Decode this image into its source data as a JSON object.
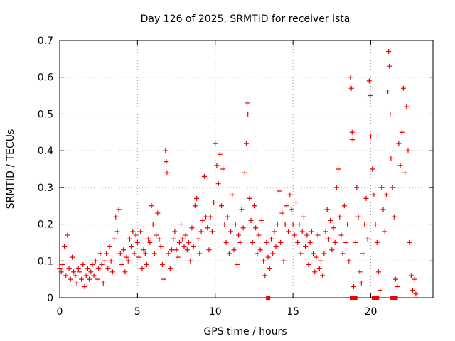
{
  "chart_data": {
    "type": "scatter",
    "title": "Day 126 of 2025, SRMTID for receiver ista",
    "xlabel": "GPS time / hours",
    "ylabel": "SRMTID / TECUs",
    "xlim": [
      0,
      24
    ],
    "ylim": [
      0,
      0.7
    ],
    "x_ticks": [
      {
        "value": 0,
        "label": "0"
      },
      {
        "value": 5,
        "label": "5"
      },
      {
        "value": 10,
        "label": "10"
      },
      {
        "value": 15,
        "label": "15"
      },
      {
        "value": 20,
        "label": "20"
      }
    ],
    "y_ticks": [
      {
        "value": 0,
        "label": "0"
      },
      {
        "value": 0.1,
        "label": "0.1"
      },
      {
        "value": 0.2,
        "label": "0.2"
      },
      {
        "value": 0.3,
        "label": "0.3"
      },
      {
        "value": 0.4,
        "label": "0.4"
      },
      {
        "value": 0.5,
        "label": "0.5"
      },
      {
        "value": 0.6,
        "label": "0.6"
      },
      {
        "value": 0.7,
        "label": "0.7"
      }
    ],
    "grid": true,
    "marker": "+",
    "series": [
      {
        "name": "SRMTID",
        "color": "#ee0000",
        "points": [
          [
            0.0,
            0.08
          ],
          [
            0.1,
            0.07
          ],
          [
            0.2,
            0.09
          ],
          [
            0.3,
            0.14
          ],
          [
            0.4,
            0.06
          ],
          [
            0.5,
            0.17
          ],
          [
            0.6,
            0.08
          ],
          [
            0.7,
            0.05
          ],
          [
            0.8,
            0.11
          ],
          [
            0.9,
            0.07
          ],
          [
            1.0,
            0.06
          ],
          [
            1.1,
            0.04
          ],
          [
            1.2,
            0.08
          ],
          [
            1.3,
            0.07
          ],
          [
            1.4,
            0.05
          ],
          [
            1.5,
            0.09
          ],
          [
            1.6,
            0.03
          ],
          [
            1.7,
            0.06
          ],
          [
            1.8,
            0.08
          ],
          [
            1.9,
            0.05
          ],
          [
            2.0,
            0.07
          ],
          [
            2.1,
            0.09
          ],
          [
            2.2,
            0.06
          ],
          [
            2.3,
            0.1
          ],
          [
            2.4,
            0.05
          ],
          [
            2.5,
            0.08
          ],
          [
            2.6,
            0.12
          ],
          [
            2.7,
            0.09
          ],
          [
            2.8,
            0.04
          ],
          [
            2.9,
            0.1
          ],
          [
            3.0,
            0.12
          ],
          [
            3.1,
            0.08
          ],
          [
            3.2,
            0.14
          ],
          [
            3.3,
            0.1
          ],
          [
            3.4,
            0.07
          ],
          [
            3.5,
            0.16
          ],
          [
            3.6,
            0.22
          ],
          [
            3.7,
            0.18
          ],
          [
            3.8,
            0.24
          ],
          [
            3.9,
            0.12
          ],
          [
            4.0,
            0.09
          ],
          [
            4.1,
            0.13
          ],
          [
            4.2,
            0.07
          ],
          [
            4.3,
            0.11
          ],
          [
            4.4,
            0.1
          ],
          [
            4.5,
            0.16
          ],
          [
            4.6,
            0.14
          ],
          [
            4.7,
            0.18
          ],
          [
            4.8,
            0.12
          ],
          [
            4.9,
            0.17
          ],
          [
            5.0,
            0.15
          ],
          [
            5.1,
            0.11
          ],
          [
            5.2,
            0.18
          ],
          [
            5.3,
            0.08
          ],
          [
            5.4,
            0.13
          ],
          [
            5.5,
            0.12
          ],
          [
            5.6,
            0.09
          ],
          [
            5.7,
            0.16
          ],
          [
            5.8,
            0.15
          ],
          [
            5.9,
            0.25
          ],
          [
            6.0,
            0.2
          ],
          [
            6.1,
            0.12
          ],
          [
            6.2,
            0.17
          ],
          [
            6.3,
            0.23
          ],
          [
            6.4,
            0.16
          ],
          [
            6.5,
            0.14
          ],
          [
            6.6,
            0.09
          ],
          [
            6.7,
            0.05
          ],
          [
            6.8,
            0.4
          ],
          [
            6.85,
            0.37
          ],
          [
            6.9,
            0.34
          ],
          [
            7.0,
            0.12
          ],
          [
            7.1,
            0.08
          ],
          [
            7.2,
            0.13
          ],
          [
            7.3,
            0.16
          ],
          [
            7.4,
            0.18
          ],
          [
            7.5,
            0.13
          ],
          [
            7.6,
            0.11
          ],
          [
            7.7,
            0.15
          ],
          [
            7.8,
            0.2
          ],
          [
            7.9,
            0.16
          ],
          [
            8.0,
            0.14
          ],
          [
            8.1,
            0.17
          ],
          [
            8.2,
            0.13
          ],
          [
            8.3,
            0.15
          ],
          [
            8.4,
            0.1
          ],
          [
            8.5,
            0.19
          ],
          [
            8.6,
            0.14
          ],
          [
            8.7,
            0.25
          ],
          [
            8.8,
            0.27
          ],
          [
            8.9,
            0.16
          ],
          [
            9.0,
            0.12
          ],
          [
            9.1,
            0.18
          ],
          [
            9.2,
            0.21
          ],
          [
            9.3,
            0.33
          ],
          [
            9.4,
            0.22
          ],
          [
            9.5,
            0.19
          ],
          [
            9.6,
            0.13
          ],
          [
            9.7,
            0.22
          ],
          [
            9.8,
            0.18
          ],
          [
            9.9,
            0.26
          ],
          [
            10.0,
            0.42
          ],
          [
            10.1,
            0.36
          ],
          [
            10.2,
            0.31
          ],
          [
            10.3,
            0.39
          ],
          [
            10.4,
            0.25
          ],
          [
            10.5,
            0.35
          ],
          [
            10.6,
            0.2
          ],
          [
            10.7,
            0.15
          ],
          [
            10.8,
            0.22
          ],
          [
            10.9,
            0.12
          ],
          [
            11.0,
            0.18
          ],
          [
            11.1,
            0.28
          ],
          [
            11.2,
            0.13
          ],
          [
            11.3,
            0.2
          ],
          [
            11.4,
            0.09
          ],
          [
            11.5,
            0.17
          ],
          [
            11.6,
            0.15
          ],
          [
            11.7,
            0.24
          ],
          [
            11.8,
            0.19
          ],
          [
            11.9,
            0.34
          ],
          [
            12.0,
            0.42
          ],
          [
            12.05,
            0.53
          ],
          [
            12.1,
            0.5
          ],
          [
            12.2,
            0.27
          ],
          [
            12.3,
            0.21
          ],
          [
            12.4,
            0.15
          ],
          [
            12.5,
            0.25
          ],
          [
            12.6,
            0.19
          ],
          [
            12.7,
            0.12
          ],
          [
            12.8,
            0.17
          ],
          [
            12.9,
            0.13
          ],
          [
            13.0,
            0.21
          ],
          [
            13.1,
            0.1
          ],
          [
            13.2,
            0.06
          ],
          [
            13.3,
            0.15
          ],
          [
            13.4,
            0.11
          ],
          [
            13.5,
            0.08
          ],
          [
            13.6,
            0.16
          ],
          [
            13.7,
            0.12
          ],
          [
            13.8,
            0.18
          ],
          [
            13.9,
            0.14
          ],
          [
            14.0,
            0.2
          ],
          [
            14.1,
            0.29
          ],
          [
            14.2,
            0.15
          ],
          [
            14.3,
            0.23
          ],
          [
            14.4,
            0.1
          ],
          [
            14.5,
            0.2
          ],
          [
            14.6,
            0.25
          ],
          [
            14.7,
            0.18
          ],
          [
            14.8,
            0.28
          ],
          [
            14.9,
            0.24
          ],
          [
            15.0,
            0.2
          ],
          [
            15.1,
            0.17
          ],
          [
            15.2,
            0.26
          ],
          [
            15.3,
            0.15
          ],
          [
            15.4,
            0.2
          ],
          [
            15.5,
            0.12
          ],
          [
            15.6,
            0.18
          ],
          [
            15.7,
            0.22
          ],
          [
            15.8,
            0.14
          ],
          [
            15.9,
            0.17
          ],
          [
            16.0,
            0.09
          ],
          [
            16.1,
            0.15
          ],
          [
            16.2,
            0.18
          ],
          [
            16.3,
            0.12
          ],
          [
            16.4,
            0.07
          ],
          [
            16.5,
            0.11
          ],
          [
            16.6,
            0.17
          ],
          [
            16.7,
            0.08
          ],
          [
            16.8,
            0.1
          ],
          [
            16.9,
            0.06
          ],
          [
            17.0,
            0.12
          ],
          [
            17.1,
            0.18
          ],
          [
            17.2,
            0.24
          ],
          [
            17.3,
            0.16
          ],
          [
            17.4,
            0.21
          ],
          [
            17.5,
            0.13
          ],
          [
            17.6,
            0.19
          ],
          [
            17.7,
            0.15
          ],
          [
            17.8,
            0.3
          ],
          [
            17.9,
            0.35
          ],
          [
            18.0,
            0.22
          ],
          [
            18.1,
            0.17
          ],
          [
            18.2,
            0.12
          ],
          [
            18.3,
            0.25
          ],
          [
            18.4,
            0.15
          ],
          [
            18.5,
            0.2
          ],
          [
            18.6,
            0.1
          ],
          [
            18.7,
            0.6
          ],
          [
            18.75,
            0.57
          ],
          [
            18.8,
            0.45
          ],
          [
            18.85,
            0.43
          ],
          [
            18.9,
            0.03
          ],
          [
            19.0,
            0.15
          ],
          [
            19.1,
            0.3
          ],
          [
            19.2,
            0.22
          ],
          [
            19.3,
            0.07
          ],
          [
            19.4,
            0.04
          ],
          [
            19.5,
            0.12
          ],
          [
            19.6,
            0.2
          ],
          [
            19.7,
            0.27
          ],
          [
            19.8,
            0.16
          ],
          [
            19.9,
            0.59
          ],
          [
            19.95,
            0.55
          ],
          [
            20.0,
            0.44
          ],
          [
            20.1,
            0.35
          ],
          [
            20.2,
            0.28
          ],
          [
            20.3,
            0.2
          ],
          [
            20.4,
            0.15
          ],
          [
            20.5,
            0.07
          ],
          [
            20.6,
            0.02
          ],
          [
            20.7,
            0.3
          ],
          [
            20.8,
            0.24
          ],
          [
            20.9,
            0.18
          ],
          [
            21.0,
            0.28
          ],
          [
            21.1,
            0.56
          ],
          [
            21.15,
            0.67
          ],
          [
            21.2,
            0.63
          ],
          [
            21.25,
            0.5
          ],
          [
            21.3,
            0.38
          ],
          [
            21.4,
            0.3
          ],
          [
            21.5,
            0.22
          ],
          [
            21.6,
            0.05
          ],
          [
            21.7,
            0.03
          ],
          [
            21.8,
            0.42
          ],
          [
            21.9,
            0.36
          ],
          [
            22.0,
            0.45
          ],
          [
            22.1,
            0.57
          ],
          [
            22.2,
            0.34
          ],
          [
            22.3,
            0.52
          ],
          [
            22.4,
            0.4
          ],
          [
            22.5,
            0.15
          ],
          [
            22.6,
            0.06
          ],
          [
            22.7,
            0.02
          ],
          [
            22.8,
            0.05
          ],
          [
            22.9,
            0.01
          ]
        ]
      }
    ],
    "zero_markers": [
      13.4,
      18.8,
      19.0,
      20.2,
      20.4,
      21.4,
      21.6
    ]
  }
}
